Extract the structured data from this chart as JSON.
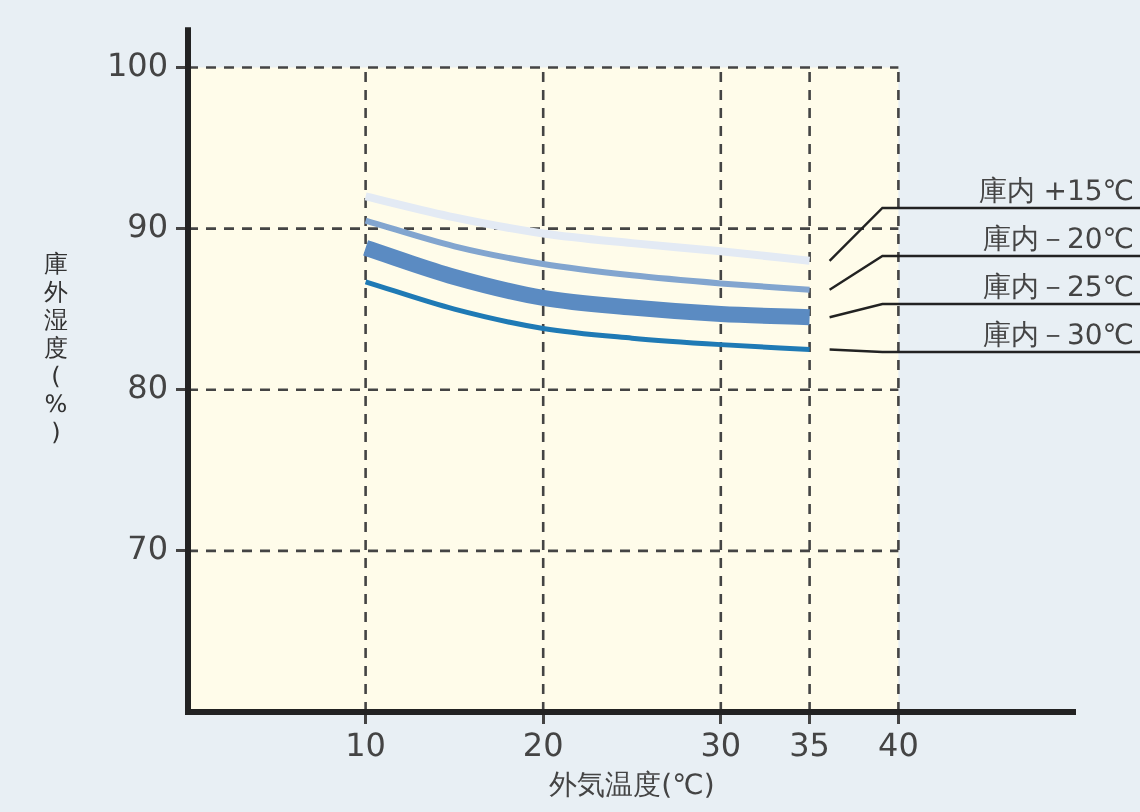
{
  "chart_data": {
    "type": "line",
    "xlabel": "外気温度(℃)",
    "ylabel": "庫外湿度(%)",
    "x": [
      10,
      15,
      20,
      25,
      30,
      35
    ],
    "series": [
      {
        "name": "庫内 +15℃",
        "color": "#e3eaf4",
        "values": [
          92.0,
          90.7,
          89.7,
          89.1,
          88.6,
          88.0
        ]
      },
      {
        "name": "庫内－20℃",
        "color": "#82a5cf",
        "values": [
          90.5,
          88.9,
          87.8,
          87.1,
          86.6,
          86.2
        ]
      },
      {
        "name": "庫内－25℃",
        "color": "#5b8bc2",
        "values": [
          88.8,
          87.0,
          85.7,
          85.1,
          84.7,
          84.5
        ]
      },
      {
        "name": "庫内－30℃",
        "color": "#1f7ab5",
        "values": [
          86.7,
          85.0,
          83.8,
          83.2,
          82.8,
          82.5
        ]
      }
    ],
    "xlim": [
      0,
      50
    ],
    "xticks": [
      10,
      20,
      30,
      35,
      40
    ],
    "ylim": [
      60,
      102.5
    ],
    "yticks": [
      70,
      80,
      90,
      100
    ],
    "bands": [
      {
        "axis": "x",
        "from": 0,
        "to": 40,
        "color": "#fffcea"
      }
    ],
    "grid": true,
    "legend": false,
    "marker": "none",
    "line_style": "solid"
  }
}
